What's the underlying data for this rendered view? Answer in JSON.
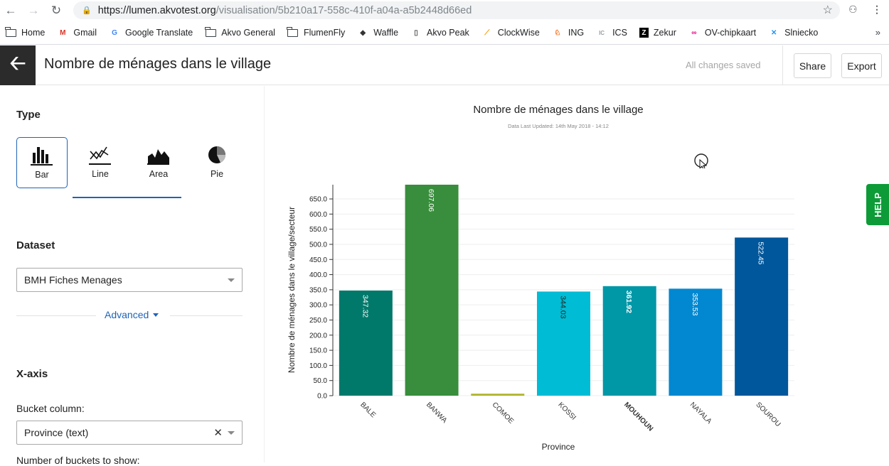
{
  "browser": {
    "url_host": "https://lumen.akvotest.org",
    "url_path": "/visualisation/5b210a17-558c-410f-a04a-a5b2448d66ed",
    "bookmarks": [
      {
        "label": "Home",
        "icon": "folder-icon"
      },
      {
        "label": "Gmail",
        "icon": "gmail-icon"
      },
      {
        "label": "Google Translate",
        "icon": "translate-icon"
      },
      {
        "label": "Akvo General",
        "icon": "folder-icon"
      },
      {
        "label": "FlumenFly",
        "icon": "folder-icon"
      },
      {
        "label": "Waffle",
        "icon": "waffle-icon"
      },
      {
        "label": "Akvo Peak",
        "icon": "document-icon"
      },
      {
        "label": "ClockWise",
        "icon": "clockwise-icon"
      },
      {
        "label": "ING",
        "icon": "ing-icon"
      },
      {
        "label": "ICS",
        "icon": "ics-icon"
      },
      {
        "label": "Zekur",
        "icon": "zekur-icon"
      },
      {
        "label": "OV-chipkaart",
        "icon": "ov-icon"
      },
      {
        "label": "Slniecko",
        "icon": "slniecko-icon"
      }
    ]
  },
  "header": {
    "title": "Nombre de ménages dans le village",
    "status": "All changes saved",
    "share_label": "Share",
    "export_label": "Export"
  },
  "sidebar": {
    "type_heading": "Type",
    "types": [
      {
        "label": "Bar",
        "icon": "bar-chart-icon",
        "selected": true
      },
      {
        "label": "Line",
        "icon": "line-chart-icon",
        "selected": false
      },
      {
        "label": "Area",
        "icon": "area-chart-icon",
        "selected": false
      },
      {
        "label": "Pie",
        "icon": "pie-chart-icon",
        "selected": false
      }
    ],
    "dataset_heading": "Dataset",
    "dataset_value": "BMH Fiches Menages",
    "advanced_label": "Advanced",
    "xaxis_heading": "X-axis",
    "bucket_label": "Bucket column:",
    "bucket_value": "Province (text)",
    "num_buckets_label": "Number of buckets to show:"
  },
  "help_label": "HELP",
  "chart_data": {
    "type": "bar",
    "title": "Nombre de ménages dans le village",
    "subtitle": "Data Last Updated: 14th May 2018 - 14:12",
    "xlabel": "Province",
    "ylabel": "Nombre de ménages dans le village/secteur",
    "ylim": [
      0,
      697.06
    ],
    "yticks": [
      0,
      50,
      100,
      150,
      200,
      250,
      300,
      350,
      400,
      450,
      500,
      550,
      600,
      650
    ],
    "categories": [
      "BALE",
      "BANWA",
      "COMOE",
      "KOSSI",
      "MOUHOUN",
      "NAYALA",
      "SOUROU"
    ],
    "values": [
      347.32,
      697.06,
      6.5,
      344.03,
      361.92,
      353.53,
      522.45
    ],
    "value_labels": [
      "347.32",
      "697.06",
      "",
      "344.03",
      "361.92",
      "353.53",
      "522.45"
    ],
    "colors": [
      "#00796b",
      "#388e3c",
      "#afb42b",
      "#00bcd4",
      "#0097a7",
      "#0288d1",
      "#01579b"
    ],
    "highlighted_category": "MOUHOUN",
    "grid": true,
    "legend": "none"
  }
}
